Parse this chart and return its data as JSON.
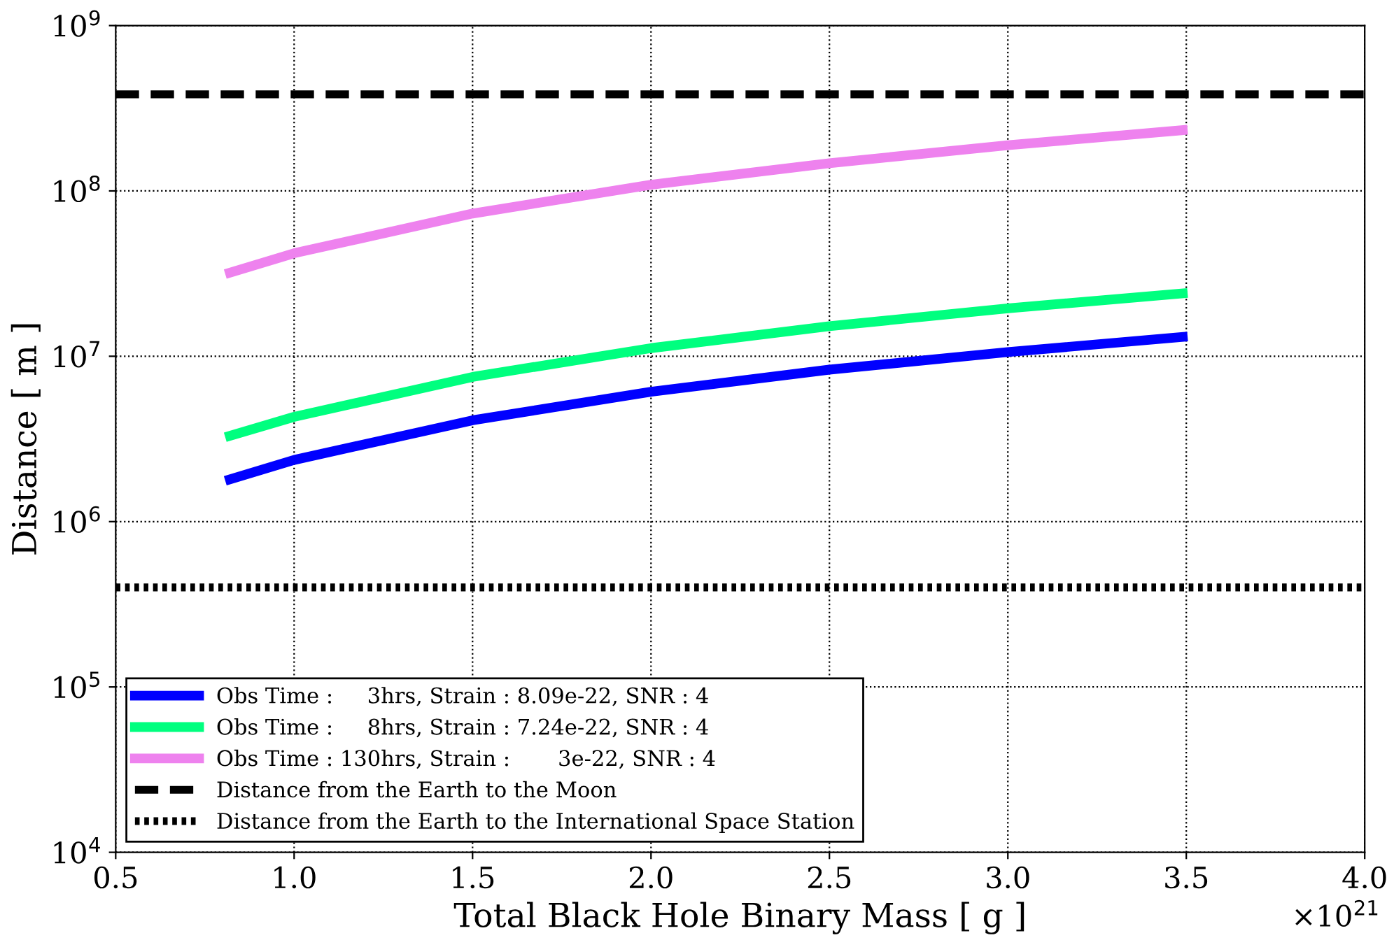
{
  "chart_data": {
    "type": "line",
    "xlabel": "Total Black Hole Binary Mass [ g ]",
    "ylabel": "Distance [ m ]",
    "x": [
      0.82,
      1.0,
      1.5,
      2.0,
      2.5,
      3.0,
      3.49
    ],
    "series": [
      {
        "name": "Obs Time :     3hrs, Strain : 8.09e-22, SNR : 4",
        "color": "#0000ff",
        "values": [
          1800000,
          2360000,
          4100000,
          6100000,
          8300000,
          10600000,
          13100000
        ]
      },
      {
        "name": "Obs Time :     8hrs, Strain : 7.24e-22, SNR : 4",
        "color": "#00ff7f",
        "values": [
          3300000,
          4300000,
          7500000,
          11200000,
          15200000,
          19500000,
          24000000
        ]
      },
      {
        "name": "Obs Time : 130hrs, Strain :       3e-22, SNR : 4",
        "color": "#ee82ee",
        "values": [
          32000000,
          42000000,
          73000000,
          109000000,
          147000000,
          189000000,
          233000000
        ]
      }
    ],
    "ref_lines": [
      {
        "axis": "y",
        "value": 384000000,
        "label": "Distance from the Earth to the Moon",
        "color": "#000000",
        "line_style": "dashed"
      },
      {
        "axis": "y",
        "value": 400000,
        "label": "Distance from the Earth to the International Space Station",
        "color": "#000000",
        "line_style": "dotted"
      }
    ],
    "log": "y",
    "xlim": [
      0.5,
      4.0
    ],
    "xticks": [
      0.5,
      {
        "value": 1,
        "label": "1.0"
      },
      1.5,
      {
        "value": 2,
        "label": "2.0"
      },
      2.5,
      {
        "value": 3,
        "label": "3.0"
      },
      3.5,
      {
        "value": 4,
        "label": "4.0"
      }
    ],
    "ylim": [
      10000,
      1000000000
    ],
    "yticks": [
      {
        "value": 10000,
        "label": "10$^{4}$"
      },
      {
        "value": 100000,
        "label": "10$^{5}$"
      },
      {
        "value": 1000000,
        "label": "10$^{6}$"
      },
      {
        "value": 10000000,
        "label": "10$^{7}$"
      },
      {
        "value": 100000000,
        "label": "10$^{8}$"
      },
      {
        "value": 1000000000,
        "label": "10$^{9}$"
      }
    ],
    "annotations": [
      "×10$^{21}$"
    ],
    "grid": true,
    "legend": "bottom left",
    "marker": "none",
    "line_style": "solid"
  }
}
